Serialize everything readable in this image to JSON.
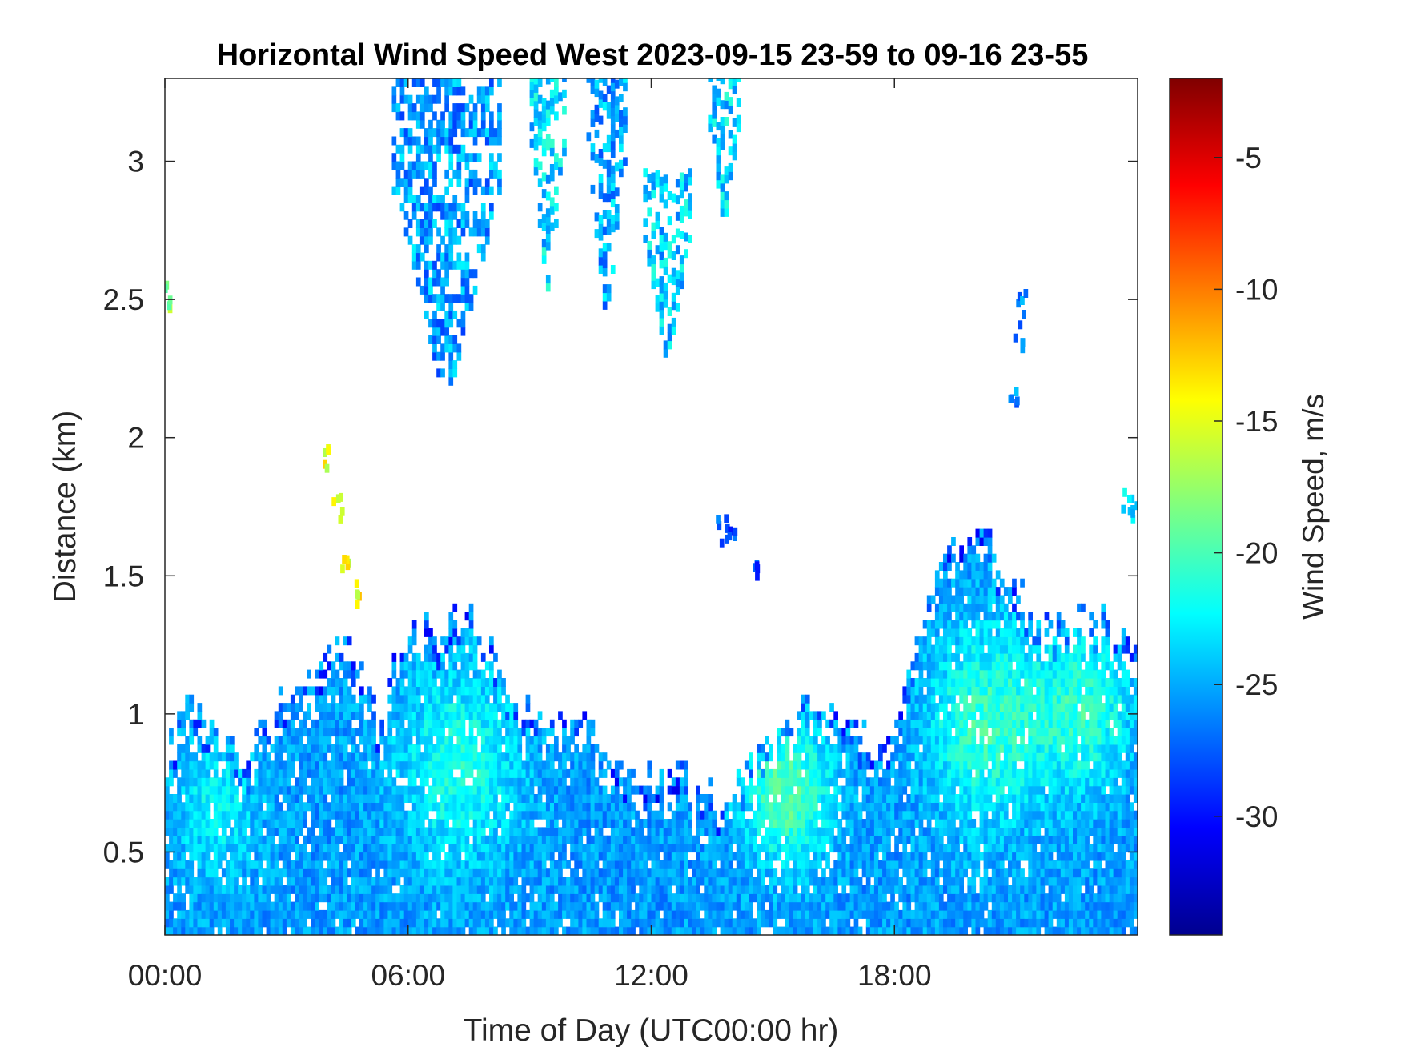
{
  "chart_data": {
    "type": "heatmap",
    "title": "Horizontal Wind Speed West 2023-09-15 23-59 to 09-16 23-55",
    "xlabel": "Time of Day (UTC00:00 hr)",
    "ylabel": "Distance (km)",
    "colorbar_label": "Wind Speed, m/s",
    "x_unit": "hours",
    "xlim": [
      0,
      24
    ],
    "ylim": [
      0.2,
      3.3
    ],
    "clim": [
      -34.5,
      -2
    ],
    "colormap": "jet",
    "x_ticks": [
      {
        "value": 0,
        "label": "00:00"
      },
      {
        "value": 6,
        "label": "06:00"
      },
      {
        "value": 12,
        "label": "12:00"
      },
      {
        "value": 18,
        "label": "18:00"
      }
    ],
    "y_ticks": [
      {
        "value": 0.5,
        "label": "0.5"
      },
      {
        "value": 1,
        "label": "1"
      },
      {
        "value": 1.5,
        "label": "1.5"
      },
      {
        "value": 2,
        "label": "2"
      },
      {
        "value": 2.5,
        "label": "2.5"
      },
      {
        "value": 3,
        "label": "3"
      }
    ],
    "colorbar_ticks": [
      {
        "value": -5,
        "label": "-5"
      },
      {
        "value": -10,
        "label": "-10"
      },
      {
        "value": -15,
        "label": "-15"
      },
      {
        "value": -20,
        "label": "-20"
      },
      {
        "value": -25,
        "label": "-25"
      },
      {
        "value": -30,
        "label": "-30"
      }
    ],
    "regions": [
      {
        "name": "low-layer",
        "profile": [
          [
            0,
            0.85
          ],
          [
            0.5,
            1.05
          ],
          [
            1,
            0.95
          ],
          [
            1.5,
            0.9
          ],
          [
            2,
            0.85
          ],
          [
            2.5,
            0.95
          ],
          [
            3,
            1.05
          ],
          [
            3.5,
            1.1
          ],
          [
            4,
            1.2
          ],
          [
            4.5,
            1.25
          ],
          [
            5,
            1.1
          ],
          [
            5.3,
            0.95
          ],
          [
            5.8,
            1.25
          ],
          [
            6.5,
            1.3
          ],
          [
            7.5,
            1.35
          ],
          [
            8.5,
            1.1
          ],
          [
            9.5,
            0.95
          ],
          [
            10.5,
            0.95
          ],
          [
            11,
            0.8
          ],
          [
            11.5,
            0.75
          ],
          [
            12,
            0.75
          ],
          [
            12.5,
            0.8
          ],
          [
            13,
            0.75
          ],
          [
            13.5,
            0.7
          ],
          [
            14.5,
            0.8
          ],
          [
            15.5,
            1.0
          ],
          [
            16,
            1.05
          ],
          [
            17,
            0.95
          ],
          [
            17.5,
            0.85
          ],
          [
            18,
            0.9
          ],
          [
            18.5,
            1.3
          ],
          [
            19.5,
            1.65
          ],
          [
            20,
            1.7
          ],
          [
            21,
            1.45
          ],
          [
            21.5,
            1.3
          ],
          [
            22.5,
            1.35
          ],
          [
            23.5,
            1.3
          ],
          [
            24,
            1.25
          ]
        ],
        "base": 0.2,
        "mean": -25.5
      },
      {
        "name": "low-layer-core-1",
        "center": [
          1.2,
          0.65
        ],
        "spread": [
          1.0,
          0.25
        ],
        "mean": -22.5
      },
      {
        "name": "low-layer-core-2",
        "center": [
          7.2,
          0.8
        ],
        "spread": [
          1.5,
          0.35
        ],
        "mean": -21.5
      },
      {
        "name": "low-layer-core-3",
        "center": [
          15.3,
          0.7
        ],
        "spread": [
          1.1,
          0.25
        ],
        "mean": -19.5
      },
      {
        "name": "low-layer-core-4",
        "center": [
          20.2,
          0.95
        ],
        "spread": [
          1.4,
          0.35
        ],
        "mean": -20.5
      },
      {
        "name": "low-layer-core-5",
        "center": [
          22.6,
          1.0
        ],
        "spread": [
          1.2,
          0.3
        ],
        "mean": -21.0
      }
    ],
    "plumes": [
      {
        "x": [
          5.6,
          8.2
        ],
        "y": [
          2.1,
          3.3
        ],
        "mean": -25.5
      },
      {
        "x": [
          9.0,
          9.8
        ],
        "y": [
          2.5,
          3.3
        ],
        "mean": -23.5
      },
      {
        "x": [
          10.4,
          11.3
        ],
        "y": [
          2.4,
          3.3
        ],
        "mean": -25.0
      },
      {
        "x": [
          11.8,
          12.9
        ],
        "y": [
          2.25,
          2.95
        ],
        "mean": -24.0
      },
      {
        "x": [
          13.4,
          14.1
        ],
        "y": [
          2.75,
          3.3
        ],
        "mean": -23.5
      }
    ],
    "features": [
      {
        "name": "high-speed-streak",
        "points": [
          [
            3.95,
            1.92
          ],
          [
            4.2,
            1.72
          ],
          [
            4.45,
            1.55
          ],
          [
            4.75,
            1.42
          ]
        ],
        "mean": -14.5
      },
      {
        "name": "isolated-echo-1",
        "points": [
          [
            21.1,
            2.47
          ],
          [
            20.9,
            2.14
          ],
          [
            21.0,
            2.35
          ]
        ],
        "mean": -26.5
      },
      {
        "name": "isolated-echo-2",
        "points": [
          [
            13.7,
            1.65
          ],
          [
            13.9,
            1.65
          ],
          [
            14.6,
            1.52
          ]
        ],
        "mean": -28.0
      },
      {
        "name": "isolated-echo-3",
        "points": [
          [
            23.7,
            1.75
          ],
          [
            23.9,
            1.7
          ]
        ],
        "mean": -24.0
      },
      {
        "name": "isolated-echo-4",
        "points": [
          [
            0.05,
            2.49
          ]
        ],
        "mean": -18.0
      }
    ]
  }
}
